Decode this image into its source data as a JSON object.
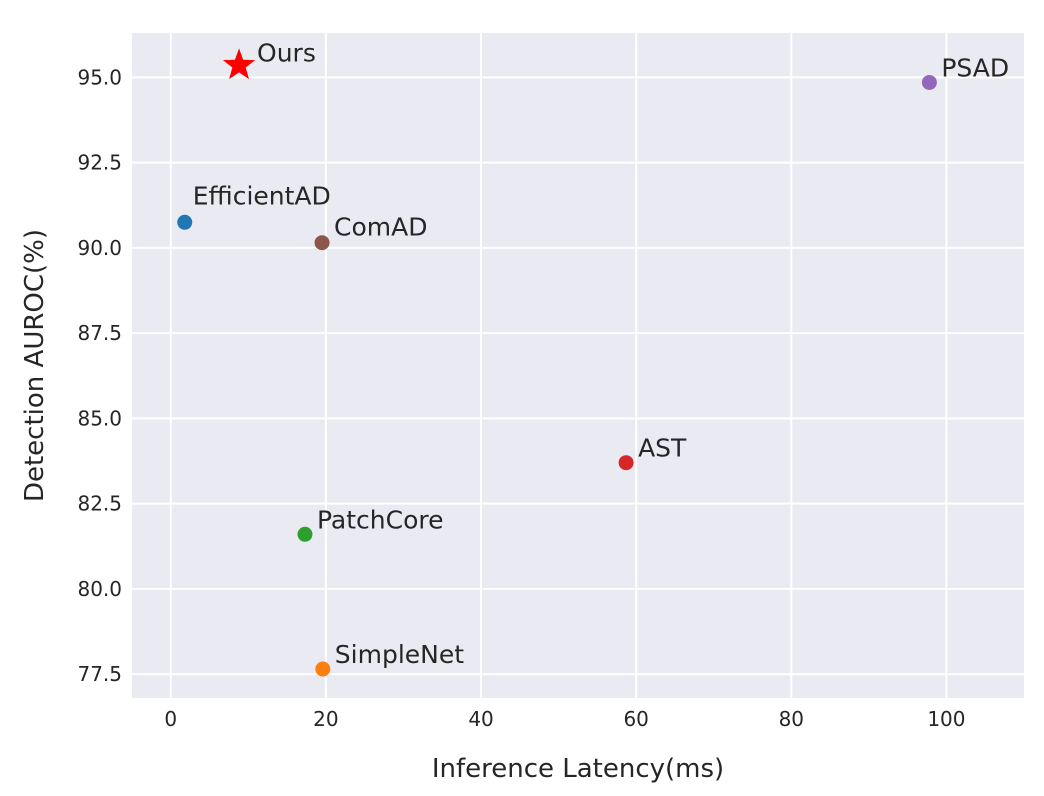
{
  "chart_data": {
    "type": "scatter",
    "title": "",
    "xlabel": "Inference Latency(ms)",
    "ylabel": "Detection AUROC(%)",
    "xlim": [
      -5,
      110
    ],
    "ylim": [
      76.8,
      96.3
    ],
    "xticks": [
      0,
      20,
      40,
      60,
      80,
      100
    ],
    "yticks": [
      77.5,
      80.0,
      82.5,
      85.0,
      87.5,
      90.0,
      92.5,
      95.0
    ],
    "xtick_labels": [
      "0",
      "20",
      "40",
      "60",
      "80",
      "100"
    ],
    "ytick_labels": [
      "77.5",
      "80.0",
      "82.5",
      "85.0",
      "87.5",
      "90.0",
      "92.5",
      "95.0"
    ],
    "grid": true,
    "background": "#EAEAF2",
    "points": [
      {
        "label": "Ours",
        "x": 8.8,
        "y": 95.35,
        "marker": "star",
        "color": "#FF0000"
      },
      {
        "label": "PSAD",
        "x": 97.8,
        "y": 94.85,
        "marker": "circle",
        "color": "#9467BD"
      },
      {
        "label": "EfficientAD",
        "x": 1.8,
        "y": 90.75,
        "marker": "circle",
        "color": "#1F77B4"
      },
      {
        "label": "ComAD",
        "x": 19.5,
        "y": 90.15,
        "marker": "circle",
        "color": "#8C564B"
      },
      {
        "label": "AST",
        "x": 58.7,
        "y": 83.7,
        "marker": "circle",
        "color": "#D62728"
      },
      {
        "label": "PatchCore",
        "x": 17.3,
        "y": 81.6,
        "marker": "circle",
        "color": "#2CA02C"
      },
      {
        "label": "SimpleNet",
        "x": 19.6,
        "y": 77.65,
        "marker": "circle",
        "color": "#FF7F0E"
      }
    ]
  }
}
